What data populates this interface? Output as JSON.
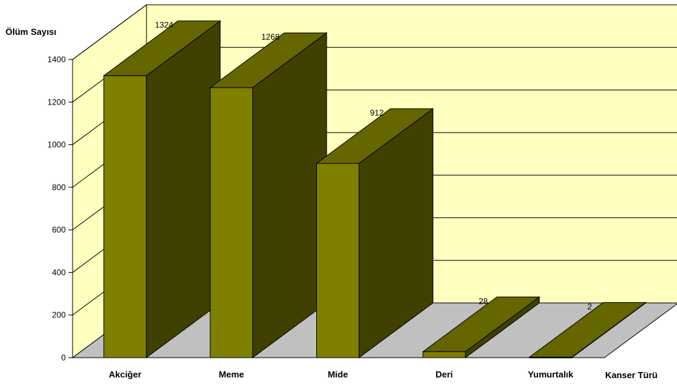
{
  "chart_data": {
    "type": "bar",
    "categories": [
      "Akciğer",
      "Meme",
      "Mide",
      "Deri",
      "Yumurtalık"
    ],
    "values": [
      1324,
      1268,
      912,
      28,
      2
    ],
    "ylabel": "Ölüm Sayısı",
    "xlabel": "Kanser Türü",
    "ylim": [
      0,
      1400
    ],
    "yticks": [
      0,
      200,
      400,
      600,
      800,
      1000,
      1200,
      1400
    ],
    "grid": true,
    "style": "3d",
    "colors": {
      "wall": "#FFFFC0",
      "floor": "#C0C0C0",
      "bar_front": "#808000",
      "bar_top": "#666600",
      "bar_side": "#404000",
      "line": "#000000"
    }
  }
}
